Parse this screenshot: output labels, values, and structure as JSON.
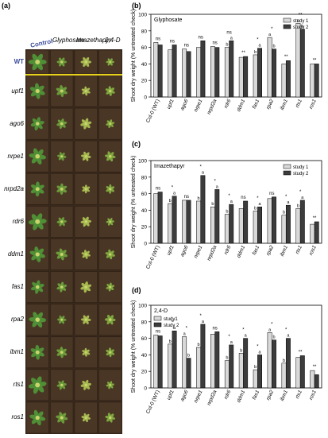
{
  "figure": {
    "panel_a_label": "(a)",
    "photo_columns": [
      "Control",
      "Glyphosate",
      "Imazethapyr",
      "2,4-D"
    ],
    "photo_rows": [
      "WT",
      "upf1",
      "ago6",
      "nrpe1",
      "nrpd2a",
      "rdr6",
      "ddm1",
      "fas1",
      "rpa2",
      "ibm1",
      "rts1",
      "ros1"
    ],
    "colors": {
      "study1": "#d9d9d9",
      "study2": "#3c3c3c",
      "photo_bg": "#3a2a1c",
      "leaf": "#4f8f36",
      "divider": "#e6d21a",
      "control_label": "#3a4d9a"
    }
  },
  "chart_data": [
    {
      "panel": "(b)",
      "type": "bar",
      "title": "Glyphosate",
      "ylabel": "Shoot dry weight (% untreated check)",
      "ylim": [
        0,
        100
      ],
      "yticks": [
        0,
        20,
        40,
        60,
        80,
        100
      ],
      "legend_position": "top-right",
      "categories": [
        "Col-0 (WT)",
        "upf1",
        "ago6",
        "nrpe1",
        "nrpd2a",
        "rdr6",
        "ddm1",
        "fas1",
        "rpa2",
        "ibm1",
        "rts1",
        "ros1"
      ],
      "series": [
        {
          "name": "study 1",
          "values": [
            66,
            57,
            58,
            60,
            61,
            60,
            48,
            51,
            72,
            40,
            89,
            40
          ]
        },
        {
          "name": "study 2",
          "values": [
            63,
            63,
            55,
            68,
            60,
            68,
            49,
            59,
            58,
            44,
            82,
            40
          ]
        }
      ],
      "annotations": [
        [
          "ns",
          "",
          ""
        ],
        [
          "ns",
          "",
          ""
        ],
        [
          "ns",
          "",
          ""
        ],
        [
          "ns",
          "",
          ""
        ],
        [
          "ns",
          "",
          ""
        ],
        [
          "ns",
          "b",
          "a"
        ],
        [
          "**",
          "",
          ""
        ],
        [
          "*",
          "b",
          "a"
        ],
        [
          "*",
          "a",
          "b"
        ],
        [
          "**",
          "",
          ""
        ],
        [
          "**",
          "a",
          "b"
        ],
        [
          "**",
          "",
          ""
        ]
      ]
    },
    {
      "panel": "(c)",
      "type": "bar",
      "title": "Imazethapyr",
      "ylabel": "Shoot dry weight (% untreated check)",
      "ylim": [
        0,
        100
      ],
      "yticks": [
        0,
        20,
        40,
        60,
        80,
        100
      ],
      "legend_position": "top-right",
      "categories": [
        "Col-0 (WT)",
        "upf1",
        "ago6",
        "nrpe1",
        "nrpd2a",
        "rdr6",
        "ddm1",
        "fas1",
        "rpa2",
        "ibm1",
        "rts1",
        "ros1"
      ],
      "series": [
        {
          "name": "study 1",
          "values": [
            60,
            48,
            52,
            51,
            44,
            35,
            42,
            39,
            54,
            34,
            42,
            23
          ]
        },
        {
          "name": "study 2",
          "values": [
            62,
            57,
            52,
            82,
            65,
            47,
            51,
            44,
            56,
            46,
            52,
            26
          ]
        }
      ],
      "annotations": [
        [
          "ns",
          "",
          ""
        ],
        [
          "*",
          "b",
          "a"
        ],
        [
          "ns",
          "",
          ""
        ],
        [
          "*",
          "b",
          "a"
        ],
        [
          "*",
          "b",
          "a"
        ],
        [
          "*",
          "b",
          "a"
        ],
        [
          "ns",
          "",
          ""
        ],
        [
          "*",
          "b",
          "a"
        ],
        [
          "ns",
          "",
          ""
        ],
        [
          "*",
          "b",
          "a"
        ],
        [
          "*",
          "b",
          "a"
        ],
        [
          "**",
          "",
          ""
        ]
      ]
    },
    {
      "panel": "(d)",
      "type": "bar",
      "title": "2,4-D",
      "ylabel": "Shoot dry weight (% untreated check)",
      "ylim": [
        0,
        100
      ],
      "yticks": [
        0,
        20,
        40,
        60,
        80,
        100
      ],
      "legend_position": "top-left",
      "categories": [
        "Col-0 (WT)",
        "upf1",
        "ago6",
        "nrpe1",
        "nrpd2a",
        "rdr6",
        "ddm1",
        "fas1",
        "rpa2",
        "ibm1",
        "rts1",
        "ros1"
      ],
      "series": [
        {
          "name": "study1",
          "values": [
            64,
            53,
            62,
            49,
            65,
            33,
            42,
            22,
            67,
            30,
            37,
            21
          ]
        },
        {
          "name": "study 2",
          "values": [
            63,
            69,
            36,
            77,
            68,
            52,
            60,
            40,
            58,
            60,
            39,
            16
          ]
        }
      ],
      "annotations": [
        [
          "ns",
          "",
          ""
        ],
        [
          "*",
          "b",
          "a"
        ],
        [
          "*",
          "a",
          "b"
        ],
        [
          "*",
          "b",
          "a"
        ],
        [
          "ns",
          "",
          ""
        ],
        [
          "*",
          "b",
          "a"
        ],
        [
          "*",
          "b",
          "a"
        ],
        [
          "*",
          "b",
          "a"
        ],
        [
          "*",
          "a",
          "b"
        ],
        [
          "*",
          "b",
          "a"
        ],
        [
          "**",
          "",
          ""
        ],
        [
          "**",
          "",
          ""
        ]
      ]
    }
  ]
}
